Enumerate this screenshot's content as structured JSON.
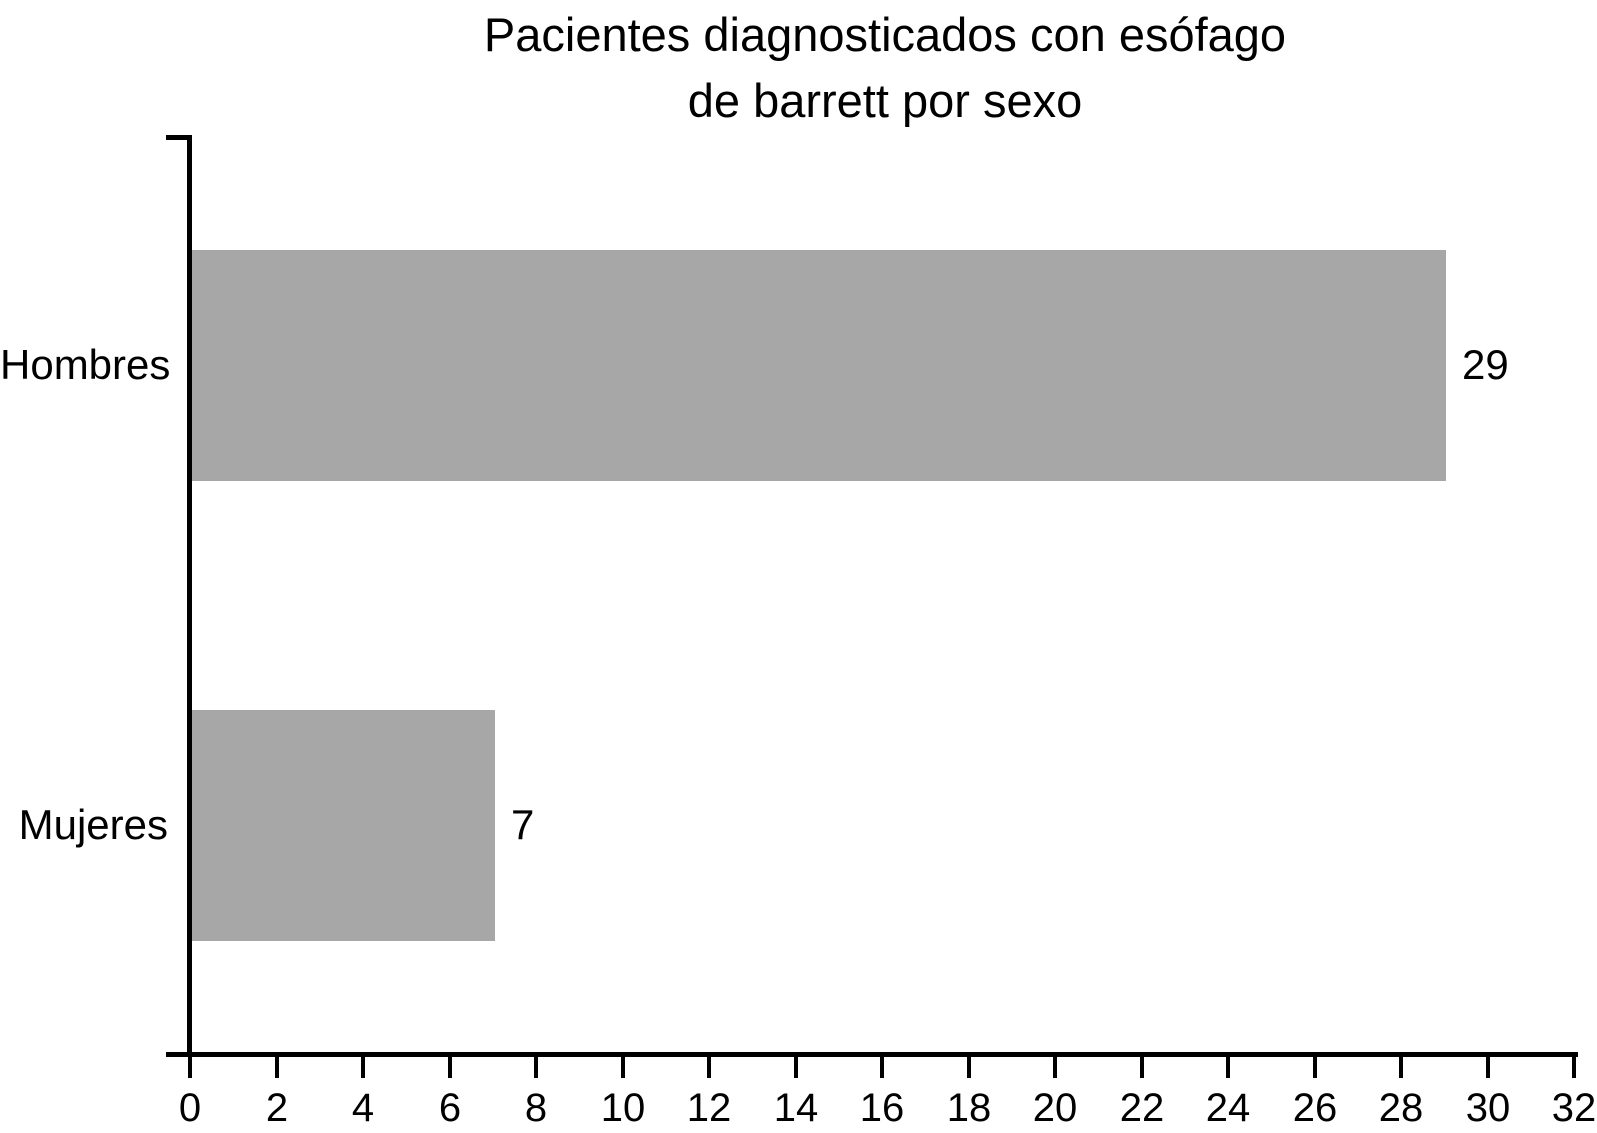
{
  "chart_data": {
    "type": "bar",
    "orientation": "horizontal",
    "title_lines": [
      "Pacientes diagnosticados con esófago",
      "de barrett por sexo"
    ],
    "categories": [
      "Hombres",
      "Mujeres"
    ],
    "values": [
      29,
      7
    ],
    "value_labels": [
      "29",
      "7"
    ],
    "xlim": [
      0,
      32
    ],
    "x_ticks": [
      0,
      2,
      4,
      6,
      8,
      10,
      12,
      14,
      16,
      18,
      20,
      22,
      24,
      26,
      28,
      30,
      32
    ],
    "bar_color": "#a7a7a7",
    "axis_color": "#000000",
    "text_color": "#000000",
    "background_color": "#ffffff",
    "grid": false,
    "legend": false,
    "xlabel": "",
    "ylabel": ""
  }
}
